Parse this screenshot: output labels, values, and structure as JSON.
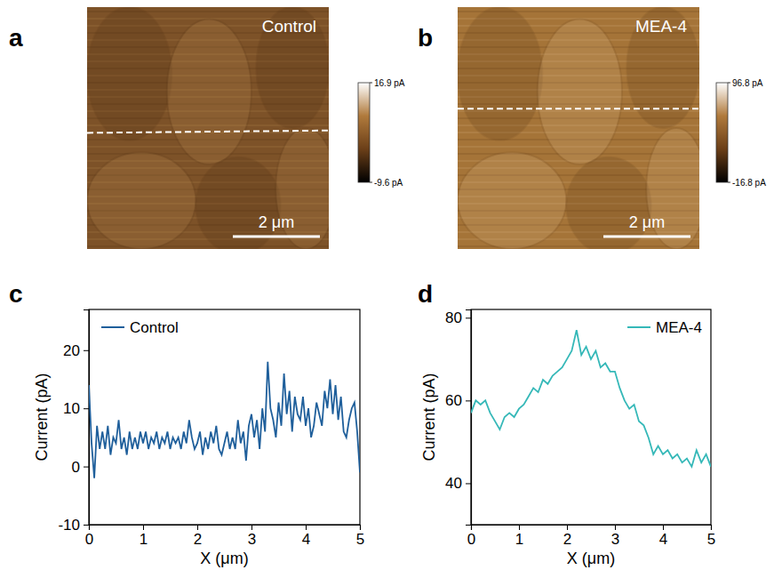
{
  "chart_data": [
    {
      "type": "image",
      "label": "a",
      "title": "Control",
      "scale_bar": "2 μm",
      "colorbar_range": [
        -9.6,
        16.9
      ],
      "colorbar_ticks": [
        {
          "value": 16.9,
          "label": "16.9 pA"
        },
        {
          "value": -9.6,
          "label": "-9.6 pA"
        }
      ]
    },
    {
      "type": "image",
      "label": "b",
      "title": "MEA-4",
      "scale_bar": "2 μm",
      "colorbar_range": [
        -16.8,
        96.8
      ],
      "colorbar_ticks": [
        {
          "value": 96.8,
          "label": "96.8 pA"
        },
        {
          "value": -16.8,
          "label": "-16.8 pA"
        }
      ]
    },
    {
      "type": "line",
      "label": "c",
      "x_label": "X (μm)",
      "y_label": "Current (pA)",
      "x": [
        0,
        0.05,
        0.1,
        0.15,
        0.2,
        0.25,
        0.3,
        0.35,
        0.4,
        0.45,
        0.5,
        0.55,
        0.6,
        0.65,
        0.7,
        0.75,
        0.8,
        0.85,
        0.9,
        0.95,
        1,
        1.05,
        1.1,
        1.15,
        1.2,
        1.25,
        1.3,
        1.35,
        1.4,
        1.45,
        1.5,
        1.55,
        1.6,
        1.65,
        1.7,
        1.75,
        1.8,
        1.85,
        1.9,
        1.95,
        2,
        2.05,
        2.1,
        2.15,
        2.2,
        2.25,
        2.3,
        2.35,
        2.4,
        2.45,
        2.5,
        2.55,
        2.6,
        2.65,
        2.7,
        2.75,
        2.8,
        2.85,
        2.9,
        2.95,
        3,
        3.05,
        3.1,
        3.15,
        3.2,
        3.25,
        3.3,
        3.35,
        3.4,
        3.45,
        3.5,
        3.55,
        3.6,
        3.65,
        3.7,
        3.75,
        3.8,
        3.85,
        3.9,
        3.95,
        4,
        4.05,
        4.1,
        4.15,
        4.2,
        4.25,
        4.3,
        4.35,
        4.4,
        4.45,
        4.5,
        4.55,
        4.6,
        4.65,
        4.7,
        4.75,
        4.8,
        4.85,
        4.9,
        4.95,
        5
      ],
      "series": [
        {
          "name": "Control",
          "color": "#1f5f9b",
          "values": [
            14,
            4,
            -2,
            7,
            3,
            6,
            3,
            7,
            2,
            5,
            4,
            8,
            3,
            5,
            2,
            6,
            3,
            5,
            3,
            6,
            4,
            6,
            3,
            5,
            4,
            6,
            3,
            5,
            4,
            6,
            3,
            5,
            4,
            5,
            3,
            6,
            4,
            8,
            5,
            3,
            4,
            6,
            2,
            5,
            3,
            6,
            4,
            7,
            3,
            2,
            4,
            6,
            3,
            5,
            3,
            8,
            4,
            6,
            1,
            7,
            9,
            5,
            8,
            3,
            10,
            6,
            18,
            10,
            8,
            5,
            11,
            7,
            16,
            9,
            13,
            6,
            12,
            9,
            8,
            12,
            7,
            10,
            5,
            7,
            11,
            9,
            7,
            13,
            10,
            15,
            9,
            14,
            8,
            12,
            6,
            5,
            8,
            10,
            11,
            6,
            -1
          ]
        }
      ],
      "xlim": [
        0,
        5
      ],
      "xticks": [
        0,
        1,
        2,
        3,
        4,
        5
      ],
      "ylim": [
        -10,
        27
      ],
      "yticks": [
        -10,
        0,
        10,
        20
      ],
      "legend": "upper left"
    },
    {
      "type": "line",
      "label": "d",
      "x_label": "X (μm)",
      "y_label": "Current (pA)",
      "x": [
        0,
        0.1,
        0.2,
        0.3,
        0.4,
        0.5,
        0.6,
        0.7,
        0.8,
        0.9,
        1,
        1.1,
        1.2,
        1.3,
        1.4,
        1.5,
        1.6,
        1.7,
        1.8,
        1.9,
        2,
        2.1,
        2.2,
        2.3,
        2.4,
        2.5,
        2.6,
        2.7,
        2.8,
        2.9,
        3,
        3.1,
        3.2,
        3.3,
        3.4,
        3.5,
        3.6,
        3.7,
        3.8,
        3.9,
        4,
        4.1,
        4.2,
        4.3,
        4.4,
        4.5,
        4.6,
        4.7,
        4.8,
        4.9,
        5
      ],
      "series": [
        {
          "name": "MEA-4",
          "color": "#35b8b8",
          "values": [
            57,
            60,
            59,
            60,
            57,
            55,
            53,
            56,
            57,
            56,
            58,
            59,
            61,
            63,
            62,
            65,
            64,
            66,
            67,
            68,
            70,
            72,
            77,
            71,
            73,
            70,
            72,
            68,
            69,
            67,
            67,
            63,
            60,
            58,
            59,
            55,
            54,
            51,
            47,
            49,
            47,
            48,
            46,
            47,
            45,
            46,
            44,
            48,
            45,
            47,
            44
          ]
        }
      ],
      "xlim": [
        0,
        5
      ],
      "xticks": [
        0,
        1,
        2,
        3,
        4,
        5
      ],
      "ylim": [
        30,
        82
      ],
      "yticks": [
        40,
        60,
        80
      ],
      "legend": "upper right"
    }
  ]
}
